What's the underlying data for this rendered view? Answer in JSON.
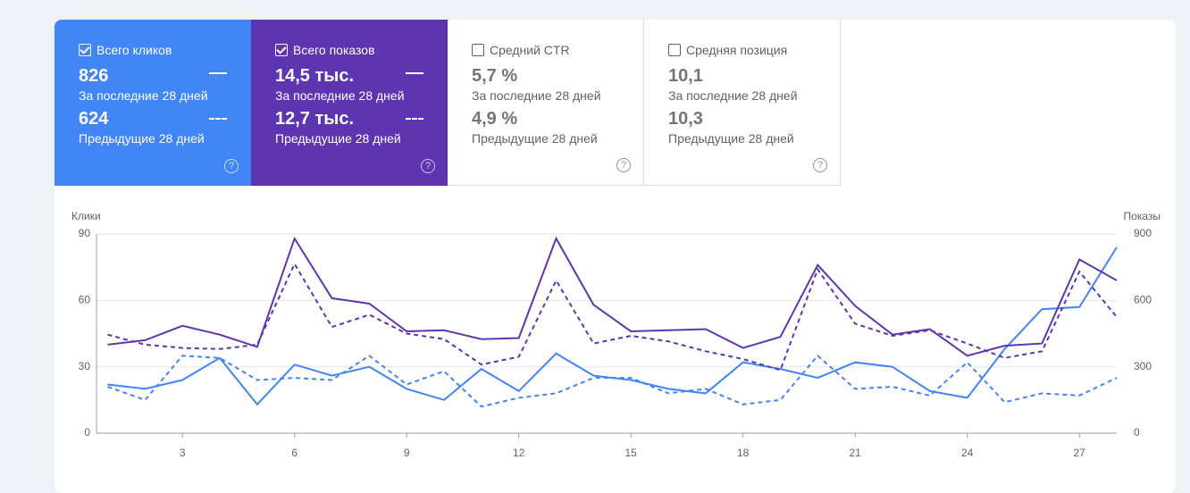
{
  "cards": [
    {
      "label": "Всего кликов",
      "checked": true,
      "color": "#4285f4",
      "current": "826",
      "current_period": "За последние 28 дней",
      "previous": "624",
      "previous_period": "Предыдущие 28 дней"
    },
    {
      "label": "Всего показов",
      "checked": true,
      "color": "#5e35b1",
      "current": "14,5 тыс.",
      "current_period": "За последние 28 дней",
      "previous": "12,7 тыс.",
      "previous_period": "Предыдущие 28 дней"
    },
    {
      "label": "Средний CTR",
      "checked": false,
      "color": "#ffffff",
      "current": "5,7 %",
      "current_period": "За последние 28 дней",
      "previous": "4,9 %",
      "previous_period": "Предыдущие 28 дней"
    },
    {
      "label": "Средняя позиция",
      "checked": false,
      "color": "#ffffff",
      "current": "10,1",
      "current_period": "За последние 28 дней",
      "previous": "10,3",
      "previous_period": "Предыдущие 28 дней"
    }
  ],
  "chart_data": {
    "type": "line",
    "y_label": "Клики",
    "y2_label": "Показы",
    "x": [
      1,
      2,
      3,
      4,
      5,
      6,
      7,
      8,
      9,
      10,
      11,
      12,
      13,
      14,
      15,
      16,
      17,
      18,
      19,
      20,
      21,
      22,
      23,
      24,
      25,
      26,
      27,
      28
    ],
    "xlim": [
      0.7,
      28
    ],
    "xticks": [
      3,
      6,
      9,
      12,
      15,
      18,
      21,
      24,
      27
    ],
    "ylim": [
      0,
      90
    ],
    "yticks": [
      0,
      30,
      60,
      90
    ],
    "y2lim": [
      0,
      900
    ],
    "y2ticks": [
      0,
      300,
      600,
      900
    ],
    "grid": true,
    "series": [
      {
        "name": "Всего кликов",
        "color": "#4285f4",
        "dashed": false,
        "values": [
          22,
          20,
          24,
          34,
          13,
          31,
          26,
          30,
          20,
          15,
          29,
          19,
          36,
          26,
          24,
          20,
          18,
          32,
          29,
          25,
          32,
          30,
          19,
          16,
          38,
          56,
          57,
          84
        ]
      },
      {
        "name": "Всего кликов (предыдущие)",
        "color": "#4285f4",
        "dashed": true,
        "values": [
          21,
          15,
          35,
          34,
          24,
          25,
          24,
          35,
          22,
          28,
          12,
          16,
          18,
          25,
          25,
          18,
          20,
          13,
          15,
          35,
          20,
          21,
          17,
          32,
          14,
          18,
          17,
          25
        ]
      },
      {
        "name": "Всего показов",
        "color": "#5e35b1",
        "dashed": false,
        "axis": "y2",
        "values": [
          400,
          420,
          485,
          445,
          390,
          880,
          610,
          585,
          460,
          465,
          425,
          430,
          880,
          580,
          460,
          465,
          470,
          385,
          435,
          760,
          575,
          445,
          470,
          350,
          395,
          405,
          785,
          690
        ]
      },
      {
        "name": "Всего показов (предыдущие)",
        "color": "#5e35b1",
        "dashed": true,
        "axis": "y2",
        "values": [
          445,
          400,
          385,
          380,
          400,
          765,
          480,
          535,
          450,
          425,
          310,
          345,
          690,
          405,
          440,
          415,
          370,
          335,
          285,
          740,
          495,
          440,
          465,
          405,
          340,
          370,
          730,
          525
        ]
      }
    ]
  }
}
